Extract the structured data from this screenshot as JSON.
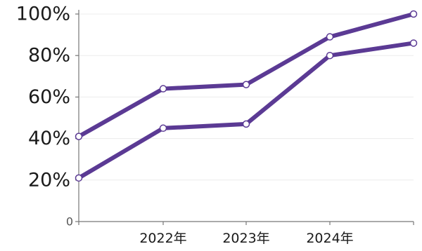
{
  "chart_data": {
    "type": "line",
    "x": [
      "2021",
      "2022年",
      "2023年",
      "2024年",
      "2025"
    ],
    "x_tick_labels": [
      "",
      "2022年",
      "2023年",
      "2024年",
      ""
    ],
    "y_tick_labels": [
      "0",
      "20%",
      "40%",
      "60%",
      "80%",
      "100%"
    ],
    "y_ticks": [
      0,
      20,
      40,
      60,
      80,
      100
    ],
    "ylim": [
      0,
      100
    ],
    "grid": true,
    "series": [
      {
        "values": [
          41,
          64,
          66,
          89,
          100
        ]
      },
      {
        "values": [
          21,
          45,
          47,
          80,
          86
        ]
      }
    ],
    "colors": {
      "line": "#5b3a94",
      "marker_fill": "#ffffff",
      "grid": "#ececec",
      "axis": "#777777"
    }
  }
}
